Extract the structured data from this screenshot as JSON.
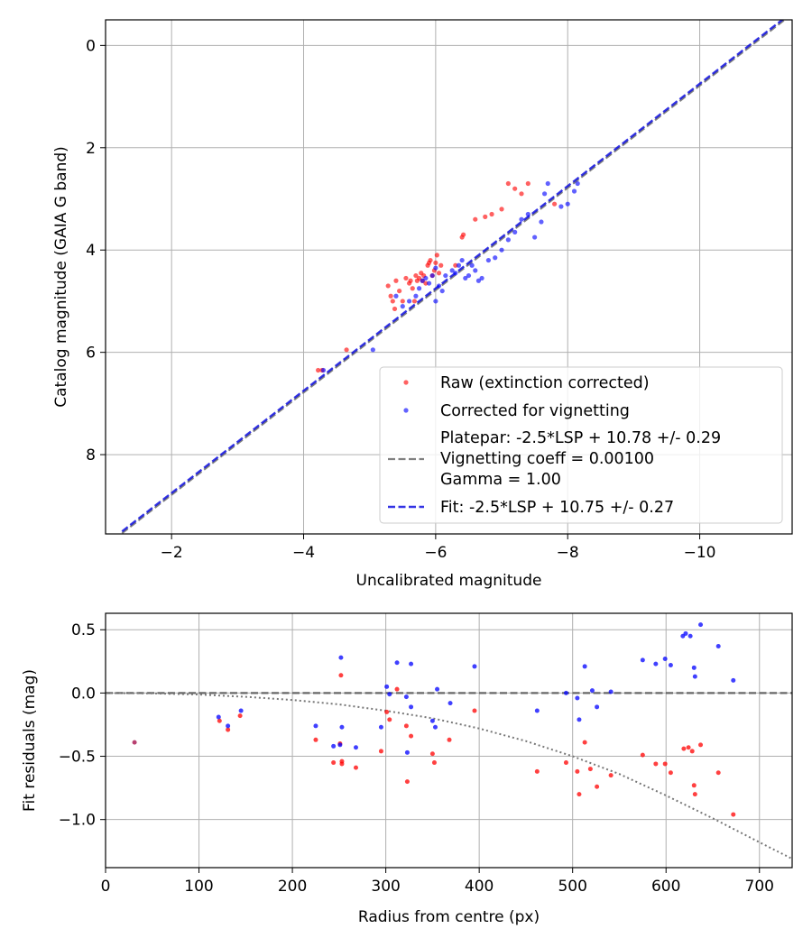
{
  "chart_data": [
    {
      "type": "scatter",
      "xlabel": "Uncalibrated magnitude",
      "ylabel": "Catalog magnitude (GAIA G band)",
      "xlim": [
        -1.0,
        -11.4
      ],
      "ylim": [
        9.55,
        -0.5
      ],
      "xticks": [
        -2,
        -4,
        -6,
        -8,
        -10
      ],
      "xtick_labels": [
        "−2",
        "−4",
        "−6",
        "−8",
        "−10"
      ],
      "yticks": [
        0,
        2,
        4,
        6,
        8
      ],
      "ytick_labels": [
        "0",
        "2",
        "4",
        "6",
        "8"
      ],
      "grid": true,
      "legend_placement": "lower-right",
      "colors": {
        "raw": "#ff0000",
        "corrected": "#0000ff",
        "platepar": "#808080",
        "fit": "#0000dd"
      },
      "series": [
        {
          "name": "Raw (extinction corrected)",
          "kind": "scatter",
          "x": [
            -4.22,
            -4.28,
            -4.65,
            -5.28,
            -5.32,
            -5.35,
            -5.38,
            -5.4,
            -5.45,
            -5.5,
            -5.55,
            -5.6,
            -5.62,
            -5.65,
            -5.68,
            -5.7,
            -5.72,
            -5.75,
            -5.78,
            -5.8,
            -5.82,
            -5.85,
            -5.88,
            -5.9,
            -5.92,
            -5.95,
            -5.98,
            -6.0,
            -6.02,
            -6.05,
            -6.08,
            -6.3,
            -6.4,
            -6.42,
            -6.6,
            -6.75,
            -6.85,
            -7.0,
            -7.1,
            -7.2,
            -7.3,
            -7.4,
            -7.8
          ],
          "y": [
            6.35,
            6.35,
            5.95,
            4.7,
            4.9,
            5.0,
            5.15,
            4.6,
            4.8,
            5.0,
            4.55,
            4.65,
            4.6,
            4.75,
            5.0,
            4.5,
            4.6,
            4.55,
            4.45,
            4.6,
            4.5,
            4.65,
            4.3,
            4.25,
            4.2,
            4.5,
            4.4,
            4.25,
            4.1,
            4.45,
            4.3,
            4.3,
            3.75,
            3.7,
            3.4,
            3.35,
            3.3,
            3.2,
            2.7,
            2.8,
            2.9,
            2.7,
            3.1
          ]
        },
        {
          "name": "Corrected for vignetting",
          "kind": "scatter",
          "x": [
            -4.3,
            -5.05,
            -5.4,
            -5.5,
            -5.6,
            -5.7,
            -5.75,
            -5.8,
            -5.85,
            -5.9,
            -5.95,
            -6.0,
            -6.0,
            -6.05,
            -6.1,
            -6.15,
            -6.25,
            -6.3,
            -6.35,
            -6.4,
            -6.45,
            -6.5,
            -6.55,
            -6.6,
            -6.65,
            -6.7,
            -6.8,
            -6.9,
            -7.0,
            -7.1,
            -7.2,
            -7.3,
            -7.4,
            -7.5,
            -7.6,
            -7.65,
            -7.7,
            -7.9,
            -8.0,
            -8.1,
            -8.15
          ],
          "y": [
            6.35,
            5.95,
            4.9,
            5.1,
            5.0,
            4.9,
            4.75,
            4.6,
            4.55,
            4.65,
            4.5,
            4.35,
            5.0,
            4.7,
            4.8,
            4.5,
            4.4,
            4.45,
            4.3,
            4.2,
            4.55,
            4.5,
            4.3,
            4.4,
            4.6,
            4.55,
            4.2,
            4.15,
            4.0,
            3.8,
            3.65,
            3.4,
            3.3,
            3.75,
            3.45,
            2.9,
            2.7,
            3.15,
            3.1,
            2.85,
            2.7
          ]
        },
        {
          "name": "Platepar: -2.5*LSP + 10.78 +/- 0.29\nVignetting coeff = 0.00100\nGamma = 1.00",
          "kind": "line",
          "style": "dashed",
          "x": [
            -1.25,
            -11.3
          ],
          "y": [
            9.535,
            -0.515
          ]
        },
        {
          "name": "Fit: -2.5*LSP + 10.75 +/- 0.27",
          "kind": "line",
          "style": "dashed",
          "x": [
            -1.25,
            -11.3
          ],
          "y": [
            9.5,
            -0.55
          ]
        }
      ],
      "legend_lines": [
        [
          "Raw (extinction corrected)"
        ],
        [
          "Corrected for vignetting"
        ],
        [
          "Platepar: -2.5*LSP + 10.78 +/- 0.29",
          "Vignetting coeff = 0.00100",
          "Gamma = 1.00"
        ],
        [
          "Fit: -2.5*LSP + 10.75 +/- 0.27"
        ]
      ]
    },
    {
      "type": "scatter",
      "xlabel": "Radius from centre (px)",
      "ylabel": "Fit residuals (mag)",
      "xlim": [
        0,
        735
      ],
      "ylim": [
        -1.38,
        0.63
      ],
      "xticks": [
        0,
        100,
        200,
        300,
        400,
        500,
        600,
        700
      ],
      "xtick_labels": [
        "0",
        "100",
        "200",
        "300",
        "400",
        "500",
        "600",
        "700"
      ],
      "yticks": [
        0.5,
        0.0,
        -0.5,
        -1.0
      ],
      "ytick_labels": [
        "0.5",
        "0.0",
        "−0.5",
        "−1.0"
      ],
      "grid": true,
      "colors": {
        "raw": "#ff0000",
        "corrected": "#0000ff",
        "zero": "#555555",
        "vignetting": "#777777",
        "overlap": "#a00040"
      },
      "series": [
        {
          "name": "raw",
          "kind": "scatter",
          "x": [
            122,
            131,
            144,
            225,
            244,
            251,
            252,
            253,
            253,
            268,
            295,
            301,
            304,
            312,
            322,
            323,
            327,
            350,
            352,
            368,
            395,
            462,
            493,
            505,
            507,
            513,
            519,
            526,
            541,
            575,
            589,
            599,
            605,
            619,
            624,
            628,
            630,
            631,
            637,
            656,
            672
          ],
          "y": [
            -0.22,
            -0.29,
            -0.18,
            -0.37,
            -0.55,
            -0.4,
            0.14,
            -0.56,
            -0.54,
            -0.59,
            -0.46,
            -0.15,
            -0.21,
            0.03,
            -0.26,
            -0.7,
            -0.34,
            -0.48,
            -0.55,
            -0.37,
            -0.14,
            -0.62,
            -0.55,
            -0.62,
            -0.8,
            -0.39,
            -0.6,
            -0.74,
            -0.65,
            -0.49,
            -0.56,
            -0.56,
            -0.63,
            -0.44,
            -0.43,
            -0.46,
            -0.73,
            -0.8,
            -0.41,
            -0.63,
            -0.96
          ]
        },
        {
          "name": "corrected",
          "kind": "scatter",
          "x": [
            121,
            131,
            145,
            225,
            244,
            251,
            252,
            253,
            268,
            295,
            301,
            304,
            312,
            322,
            323,
            327,
            327,
            350,
            353,
            355,
            369,
            395,
            462,
            493,
            505,
            507,
            513,
            521,
            526,
            541,
            575,
            589,
            599,
            605,
            618,
            621,
            626,
            630,
            631,
            637,
            656,
            672
          ],
          "y": [
            -0.19,
            -0.26,
            -0.14,
            -0.26,
            -0.42,
            -0.41,
            0.28,
            -0.27,
            -0.43,
            -0.27,
            0.05,
            -0.01,
            0.24,
            -0.03,
            -0.47,
            -0.11,
            0.23,
            -0.22,
            -0.27,
            0.03,
            -0.08,
            0.21,
            -0.14,
            0.0,
            -0.04,
            -0.21,
            0.21,
            0.02,
            -0.11,
            0.01,
            0.26,
            0.23,
            0.27,
            0.22,
            0.45,
            0.47,
            0.45,
            0.2,
            0.13,
            0.54,
            0.37,
            0.1
          ]
        },
        {
          "name": "overlap",
          "kind": "scatter",
          "x": [
            31
          ],
          "y": [
            -0.39
          ]
        },
        {
          "name": "zero",
          "kind": "line",
          "style": "dashed",
          "x": [
            0,
            735
          ],
          "y": [
            0,
            0
          ]
        },
        {
          "name": "vignetting",
          "kind": "curve",
          "style": "dotted",
          "x": [
            0,
            50,
            100,
            150,
            200,
            250,
            300,
            350,
            400,
            450,
            500,
            550,
            600,
            650,
            700,
            735
          ],
          "y": [
            0.0,
            -0.003,
            -0.012,
            -0.03,
            -0.055,
            -0.09,
            -0.14,
            -0.2,
            -0.28,
            -0.38,
            -0.5,
            -0.64,
            -0.81,
            -0.99,
            -1.18,
            -1.31
          ]
        }
      ]
    }
  ]
}
